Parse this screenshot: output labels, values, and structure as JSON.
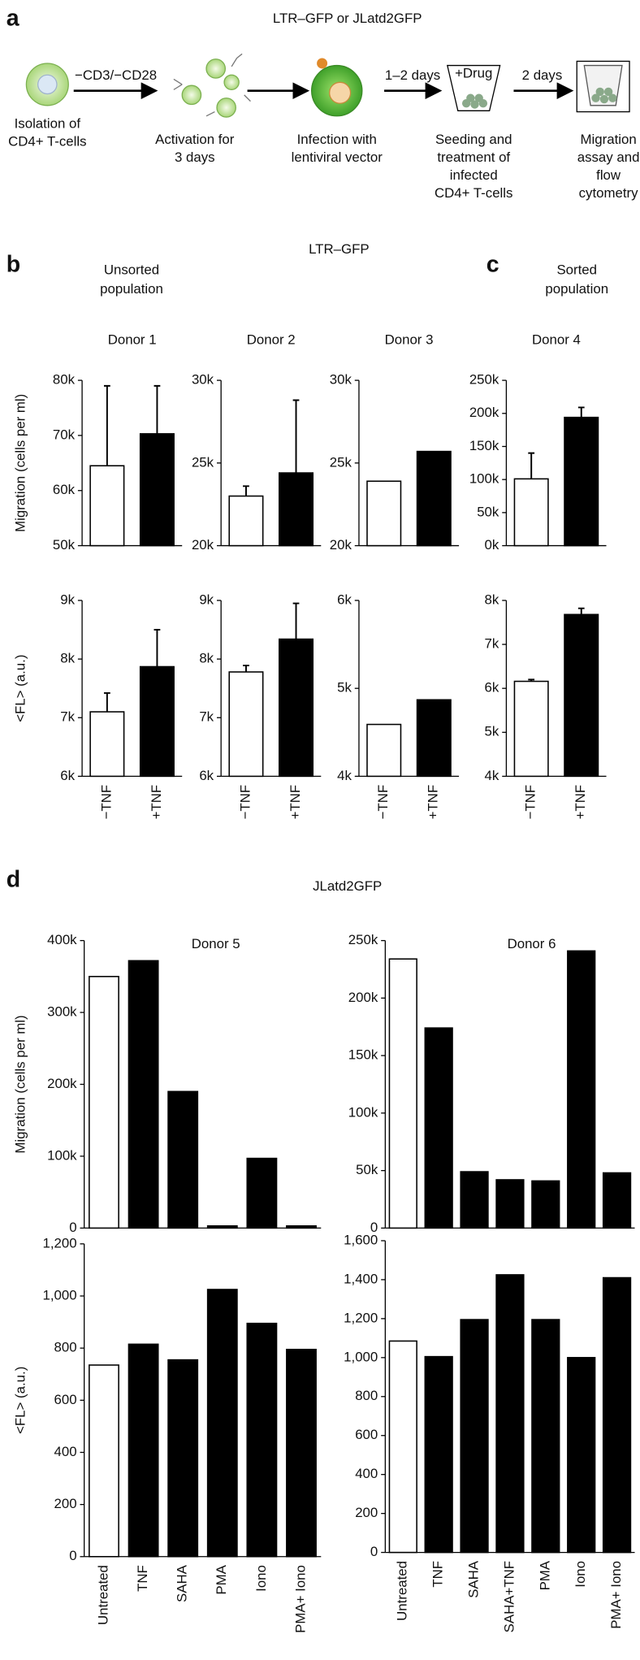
{
  "panel_a": {
    "label": "a",
    "title": "LTR–GFP or JLatd2GFP",
    "steps": [
      {
        "lines": [
          "Isolation of",
          "CD4+ T-cells"
        ]
      },
      {
        "lines": [
          "Activation for",
          "3 days"
        ]
      },
      {
        "lines": [
          "Infection with",
          "lentiviral vector"
        ]
      },
      {
        "lines": [
          "Seeding and",
          "treatment of",
          "infected",
          "CD4+ T-cells"
        ]
      },
      {
        "lines": [
          "Migration",
          "assay and",
          "flow",
          "cytometry"
        ]
      }
    ],
    "arrow_labels": [
      "−CD3/−CD28",
      "1–2 days",
      "2 days"
    ],
    "drug": "+Drug"
  },
  "panel_b": {
    "label": "b",
    "title": "LTR–GFP",
    "subtitle": [
      "Unsorted",
      "population"
    ]
  },
  "panel_c": {
    "label": "c",
    "subtitle": [
      "Sorted",
      "population"
    ]
  },
  "panel_d": {
    "label": "d",
    "title": "JLatd2GFP"
  },
  "chart_data": [
    {
      "type": "bar",
      "title": "Donor 1",
      "categories": [
        "−TNF",
        "+TNF"
      ],
      "colors": [
        "#ffffff",
        "#000000"
      ],
      "panels": [
        {
          "ylabel": "Migration (cells per ml)",
          "ylim": [
            50000,
            80000
          ],
          "yticks": [
            {
              "value": 50000,
              "label": "50k"
            },
            {
              "value": 60000,
              "label": "60k"
            },
            {
              "value": 70000,
              "label": "70k"
            },
            {
              "value": 80000,
              "label": "80k"
            }
          ],
          "values": [
            64500,
            70300
          ],
          "errors": [
            14500,
            8700
          ]
        },
        {
          "ylabel": "<FL> (a.u.)",
          "ylim": [
            6000,
            9000
          ],
          "yticks": [
            {
              "value": 6000,
              "label": "6k"
            },
            {
              "value": 7000,
              "label": "7k"
            },
            {
              "value": 8000,
              "label": "8k"
            },
            {
              "value": 9000,
              "label": "9k"
            }
          ],
          "values": [
            7100,
            7870
          ],
          "errors": [
            320,
            630
          ]
        }
      ]
    },
    {
      "type": "bar",
      "title": "Donor 2",
      "categories": [
        "−TNF",
        "+TNF"
      ],
      "colors": [
        "#ffffff",
        "#000000"
      ],
      "panels": [
        {
          "ylim": [
            20000,
            30000
          ],
          "yticks": [
            {
              "value": 20000,
              "label": "20k"
            },
            {
              "value": 25000,
              "label": "25k"
            },
            {
              "value": 30000,
              "label": "30k"
            }
          ],
          "values": [
            23000,
            24400
          ],
          "errors": [
            600,
            4400
          ]
        },
        {
          "ylim": [
            6000,
            9000
          ],
          "yticks": [
            {
              "value": 6000,
              "label": "6k"
            },
            {
              "value": 7000,
              "label": "7k"
            },
            {
              "value": 8000,
              "label": "8k"
            },
            {
              "value": 9000,
              "label": "9k"
            }
          ],
          "values": [
            7780,
            8340
          ],
          "errors": [
            110,
            610
          ]
        }
      ]
    },
    {
      "type": "bar",
      "title": "Donor 3",
      "categories": [
        "−TNF",
        "+TNF"
      ],
      "colors": [
        "#ffffff",
        "#000000"
      ],
      "panels": [
        {
          "ylim": [
            20000,
            30000
          ],
          "yticks": [
            {
              "value": 20000,
              "label": "20k"
            },
            {
              "value": 25000,
              "label": "25k"
            },
            {
              "value": 30000,
              "label": "30k"
            }
          ],
          "values": [
            23900,
            25700
          ]
        },
        {
          "ylim": [
            4000,
            6000
          ],
          "yticks": [
            {
              "value": 4000,
              "label": "4k"
            },
            {
              "value": 5000,
              "label": "5k"
            },
            {
              "value": 6000,
              "label": "6k"
            }
          ],
          "values": [
            4590,
            4870
          ]
        }
      ]
    },
    {
      "type": "bar",
      "title": "Donor 4",
      "categories": [
        "−TNF",
        "+TNF"
      ],
      "colors": [
        "#ffffff",
        "#000000"
      ],
      "panels": [
        {
          "ylim": [
            0,
            250000
          ],
          "yticks": [
            {
              "value": 0,
              "label": "0k"
            },
            {
              "value": 50000,
              "label": "50k"
            },
            {
              "value": 100000,
              "label": "100k"
            },
            {
              "value": 150000,
              "label": "150k"
            },
            {
              "value": 200000,
              "label": "200k"
            },
            {
              "value": 250000,
              "label": "250k"
            }
          ],
          "values": [
            101000,
            194000
          ],
          "errors": [
            39000,
            15000
          ]
        },
        {
          "ylim": [
            4000,
            8000
          ],
          "yticks": [
            {
              "value": 4000,
              "label": "4k"
            },
            {
              "value": 5000,
              "label": "5k"
            },
            {
              "value": 6000,
              "label": "6k"
            },
            {
              "value": 7000,
              "label": "7k"
            },
            {
              "value": 8000,
              "label": "8k"
            }
          ],
          "values": [
            6160,
            7680
          ],
          "errors": [
            40,
            140
          ]
        }
      ]
    },
    {
      "type": "bar",
      "title": "Donor 5",
      "categories": [
        "Untreated",
        "TNF",
        "SAHA",
        "PMA",
        "Iono",
        "PMA+ Iono"
      ],
      "colors": [
        "#ffffff",
        "#000000",
        "#000000",
        "#000000",
        "#000000",
        "#000000"
      ],
      "panels": [
        {
          "ylabel": "Migration (cells per ml)",
          "ylim": [
            0,
            400000
          ],
          "yticks": [
            0,
            {
              "value": 100000,
              "label": "100k"
            },
            {
              "value": 200000,
              "label": "200k"
            },
            {
              "value": 300000,
              "label": "300k"
            },
            {
              "value": 400000,
              "label": "400k"
            }
          ],
          "values": [
            350000,
            372000,
            190000,
            3000,
            97000,
            3000
          ]
        },
        {
          "ylabel": "<FL> (a.u.)",
          "ylim": [
            0,
            1200
          ],
          "yticks": [
            0,
            200,
            400,
            600,
            800,
            {
              "value": 1000,
              "label": "1,000"
            },
            {
              "value": 1200,
              "label": "1,200"
            }
          ],
          "values": [
            735,
            815,
            755,
            1025,
            895,
            795
          ]
        }
      ]
    },
    {
      "type": "bar",
      "title": "Donor 6",
      "categories": [
        "Untreated",
        "TNF",
        "SAHA",
        "SAHA+TNF",
        "PMA",
        "Iono",
        "PMA+ Iono"
      ],
      "colors": [
        "#ffffff",
        "#000000",
        "#000000",
        "#000000",
        "#000000",
        "#000000",
        "#000000"
      ],
      "panels": [
        {
          "ylim": [
            0,
            250000
          ],
          "yticks": [
            0,
            {
              "value": 50000,
              "label": "50k"
            },
            {
              "value": 100000,
              "label": "100k"
            },
            {
              "value": 150000,
              "label": "150k"
            },
            {
              "value": 200000,
              "label": "200k"
            },
            {
              "value": 250000,
              "label": "250k"
            }
          ],
          "values": [
            234000,
            174000,
            49000,
            42000,
            41000,
            241000,
            48000
          ]
        },
        {
          "ylim": [
            0,
            1600
          ],
          "yticks": [
            0,
            200,
            400,
            600,
            800,
            {
              "value": 1000,
              "label": "1,000"
            },
            {
              "value": 1200,
              "label": "1,200"
            },
            {
              "value": 1400,
              "label": "1,400"
            },
            {
              "value": 1600,
              "label": "1,600"
            }
          ],
          "values": [
            1085,
            1005,
            1195,
            1425,
            1195,
            1000,
            1410
          ]
        }
      ]
    }
  ]
}
